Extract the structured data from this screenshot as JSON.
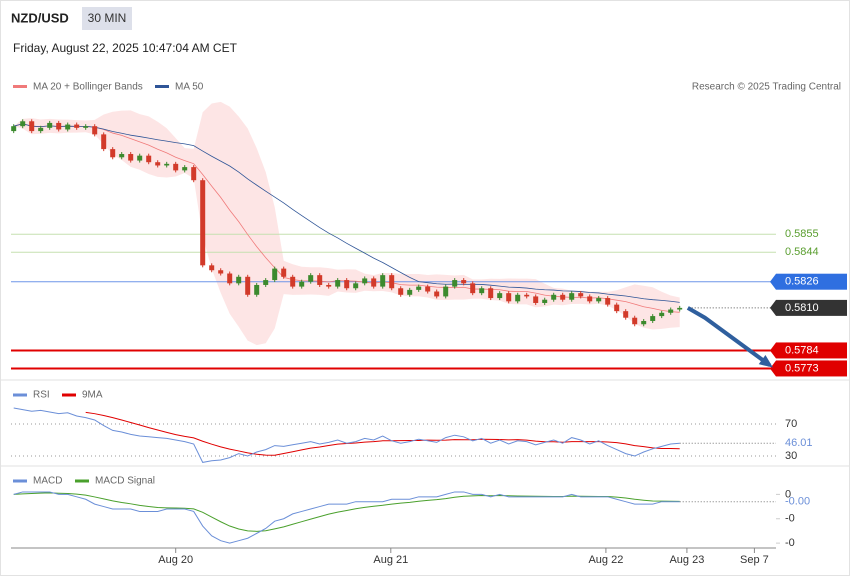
{
  "header": {
    "symbol": "NZD/USD",
    "timeframe": "30 MIN",
    "timestamp": "Friday, August 22, 2025 10:47:04 AM CET"
  },
  "chart_data": [
    {
      "type": "candlestick",
      "indicators": [
        {
          "name": "MA 20 + Bollinger Bands",
          "color": "#f07a7a"
        },
        {
          "name": "MA 50",
          "color": "#2f5597"
        }
      ],
      "credit": "Research © 2025 Trading Central",
      "first_open": 0.5918,
      "close": [
        0.5921,
        0.5924,
        0.5918,
        0.592,
        0.5923,
        0.5919,
        0.5922,
        0.592,
        0.5921,
        0.5916,
        0.5907,
        0.5902,
        0.5904,
        0.59,
        0.5903,
        0.5899,
        0.5897,
        0.5898,
        0.5894,
        0.5896,
        0.5888,
        0.5836,
        0.5833,
        0.5831,
        0.5825,
        0.5829,
        0.5818,
        0.5824,
        0.5827,
        0.5834,
        0.5829,
        0.5823,
        0.5826,
        0.583,
        0.5824,
        0.5823,
        0.5827,
        0.5822,
        0.5825,
        0.5828,
        0.5823,
        0.583,
        0.5822,
        0.5818,
        0.5821,
        0.5823,
        0.582,
        0.5817,
        0.5823,
        0.5827,
        0.5825,
        0.5819,
        0.5822,
        0.5816,
        0.5819,
        0.5814,
        0.5818,
        0.5817,
        0.5813,
        0.5815,
        0.5818,
        0.5815,
        0.5819,
        0.5817,
        0.5814,
        0.5816,
        0.5812,
        0.5808,
        0.5804,
        0.58,
        0.5802,
        0.5805,
        0.5807,
        0.5809,
        0.581
      ],
      "up_color": "#3c8a2e",
      "down_color": "#d23a2a",
      "xlim": [
        -0.3,
        84.7
      ],
      "xticks": [
        {
          "value": 18,
          "label": "Aug 20"
        },
        {
          "value": 41.9,
          "label": "Aug 21"
        },
        {
          "value": 65.8,
          "label": "Aug 22"
        },
        {
          "value": 74.8,
          "label": "Aug 23"
        },
        {
          "value": 82.3,
          "label": "Sep 7"
        }
      ],
      "ylim": [
        0.5769,
        0.5937
      ],
      "levels": [
        {
          "value": 0.5855,
          "color": "#5a9e2f",
          "line_color": "#c5e0b0"
        },
        {
          "value": 0.5844,
          "color": "#5a9e2f",
          "line_color": "#c5e0b0"
        },
        {
          "value": 0.5826,
          "color": "#2f6fe0",
          "line_color": "#6f95e8",
          "box": true
        },
        {
          "value": 0.581,
          "label": "0.5810",
          "color": "#333333",
          "line_color": "#555555",
          "box": true,
          "dotted": true
        },
        {
          "value": 0.5784,
          "color": "#e00000",
          "line_color": "#e00000",
          "box": true,
          "thick": true
        },
        {
          "value": 0.5773,
          "color": "#e00000",
          "line_color": "#e00000",
          "box": true,
          "thick": true
        }
      ],
      "forecast": {
        "x": [
          74.9,
          76.8,
          84.0
        ],
        "y": [
          0.581,
          0.5804,
          0.5775
        ],
        "color": "#2f5f9e"
      }
    },
    {
      "type": "line",
      "series": [
        {
          "name": "RSI",
          "color": "#6b8fd8",
          "values": [
            90,
            88,
            86,
            87,
            85,
            83,
            84,
            80,
            78,
            75,
            68,
            62,
            60,
            57,
            55,
            54,
            53,
            52,
            50,
            48,
            45,
            22,
            24,
            25,
            28,
            33,
            30,
            35,
            38,
            43,
            42,
            44,
            46,
            48,
            45,
            47,
            50,
            46,
            48,
            52,
            50,
            55,
            49,
            46,
            48,
            51,
            49,
            47,
            53,
            56,
            54,
            49,
            52,
            46,
            50,
            45,
            49,
            48,
            44,
            47,
            50,
            46,
            53,
            50,
            45,
            49,
            43,
            38,
            33,
            30,
            35,
            39,
            42,
            45,
            46.01
          ]
        }
      ],
      "indicators": [
        {
          "name": "9MA",
          "color": "#e00000"
        }
      ],
      "ylim": [
        18,
        100
      ],
      "yticks": [
        70,
        30
      ]
    },
    {
      "type": "line",
      "series": [
        {
          "name": "MACD",
          "color": "#6b8fd8",
          "values": [
            0,
            0.0001,
            0.0001,
            0.0001,
            0.0001,
            0,
            0,
            -0.0001,
            -0.0002,
            -0.0004,
            -0.0005,
            -0.0006,
            -0.0006,
            -0.0006,
            -0.0007,
            -0.0007,
            -0.0007,
            -0.0006,
            -0.0006,
            -0.0006,
            -0.0007,
            -0.0013,
            -0.0017,
            -0.0019,
            -0.002,
            -0.0019,
            -0.0018,
            -0.0016,
            -0.0014,
            -0.0011,
            -0.001,
            -0.0008,
            -0.0007,
            -0.0006,
            -0.0005,
            -0.0004,
            -0.0004,
            -0.0004,
            -0.0003,
            -0.0003,
            -0.0003,
            -0.0003,
            -0.0002,
            -0.0002,
            -0.0002,
            -0.0001,
            -0.0001,
            -0.0001,
            0,
            0.0001,
            0.0001,
            0,
            0,
            -0.0001,
            0,
            -0.0001,
            -0.0001,
            -0.0001,
            -0.0001,
            -0.0001,
            -0.0001,
            -0.0001,
            0,
            -0.0001,
            -0.0001,
            -0.0001,
            -0.0001,
            -0.0002,
            -0.0003,
            -0.0004,
            -0.0004,
            -0.0004,
            -0.0003,
            -0.0003,
            -0.0003
          ],
          "last_value_label": "-0.00"
        }
      ],
      "indicators": [
        {
          "name": "MACD Signal",
          "color": "#4aa02c"
        }
      ],
      "ylim": [
        -0.0022,
        0.001
      ],
      "yticks": [
        0,
        {
          "value": -0.001,
          "label": "-0"
        },
        {
          "value": -0.002,
          "label": "-0"
        }
      ]
    }
  ]
}
